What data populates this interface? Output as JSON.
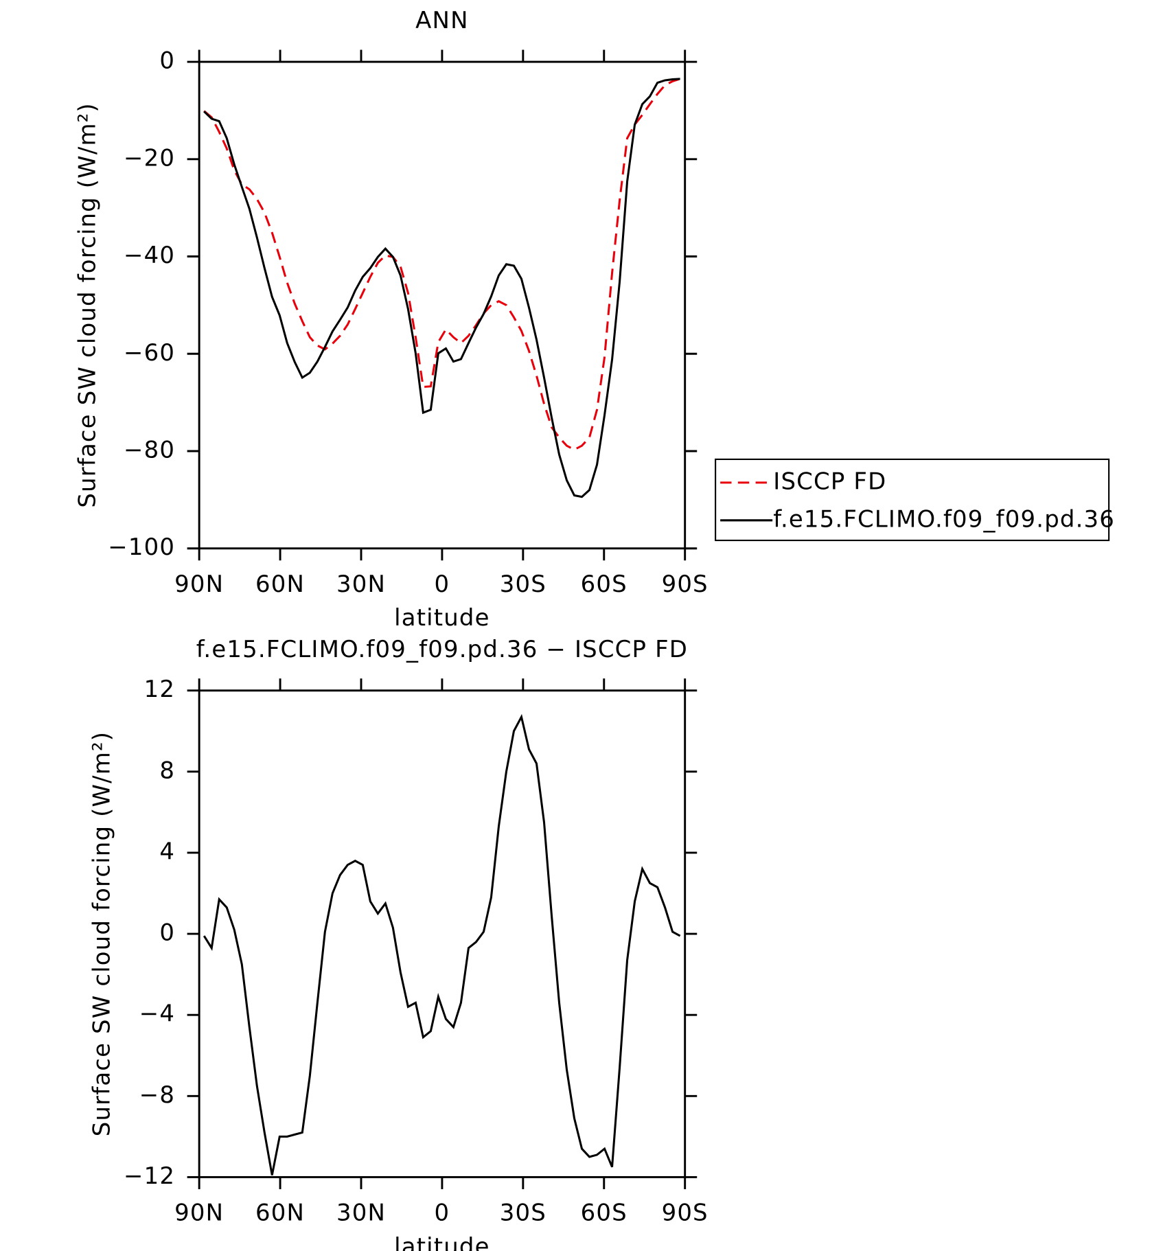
{
  "chart_data": [
    {
      "type": "line",
      "title": "ANN",
      "xlabel": "latitude",
      "ylabel": "Surface SW cloud forcing (W/m²)",
      "x": [
        88.2,
        85.4,
        82.6,
        79.8,
        77,
        74.2,
        71.4,
        68.6,
        65.8,
        63,
        60.2,
        57.4,
        54.6,
        51.8,
        49,
        46.2,
        43.4,
        40.6,
        37.8,
        35,
        32.2,
        29.4,
        26.6,
        23.8,
        21,
        18.2,
        15.4,
        12.6,
        9.8,
        7,
        4.2,
        1.4,
        -1.4,
        -4.2,
        -7,
        -9.8,
        -12.6,
        -15.4,
        -18.2,
        -21,
        -23.8,
        -26.6,
        -29.4,
        -32.2,
        -35,
        -37.8,
        -40.6,
        -43.4,
        -46.2,
        -49,
        -51.8,
        -54.6,
        -57.4,
        -60.2,
        -63,
        -65.8,
        -68.6,
        -71.4,
        -74.2,
        -77,
        -79.8,
        -82.6,
        -85.4,
        -88.2
      ],
      "series": [
        {
          "name": "ISCCP FD",
          "color": "#e8000b",
          "style": "dashed",
          "values": [
            -10.1,
            -11.4,
            -14.4,
            -17.8,
            -22.3,
            -25.2,
            -26.2,
            -28.2,
            -31.0,
            -35.1,
            -40.1,
            -45.4,
            -49.7,
            -53.3,
            -56.6,
            -58.3,
            -59.1,
            -57.9,
            -56.3,
            -54.0,
            -50.8,
            -47.5,
            -44.2,
            -41.3,
            -39.8,
            -40.1,
            -42.1,
            -47.5,
            -56.6,
            -66.8,
            -66.7,
            -57.6,
            -55.0,
            -56.6,
            -57.8,
            -56.3,
            -54.1,
            -51.7,
            -50.0,
            -49.2,
            -50.0,
            -52.5,
            -55.3,
            -59.4,
            -64.5,
            -70.3,
            -75.1,
            -77.2,
            -78.9,
            -79.7,
            -78.9,
            -77.2,
            -71.5,
            -60.7,
            -43.4,
            -28.5,
            -15.7,
            -12.9,
            -10.9,
            -8.7,
            -6.6,
            -4.8,
            -4.0,
            -3.5
          ]
        },
        {
          "name": "f.e15.FCLIMO.f09_f09.pd.36",
          "color": "#000000",
          "style": "solid",
          "values": [
            -10.2,
            -11.7,
            -12.2,
            -15.7,
            -21.1,
            -25.7,
            -30.2,
            -36.1,
            -42.4,
            -48.3,
            -52.1,
            -57.8,
            -61.7,
            -64.9,
            -63.9,
            -61.6,
            -58.6,
            -55.4,
            -53.0,
            -50.5,
            -47.0,
            -44.2,
            -42.4,
            -40.1,
            -38.4,
            -40.1,
            -43.9,
            -50.8,
            -59.9,
            -72.1,
            -71.5,
            -59.9,
            -58.9,
            -61.6,
            -61.1,
            -57.8,
            -54.6,
            -51.8,
            -48.2,
            -43.9,
            -41.6,
            -41.9,
            -44.6,
            -50.5,
            -57.1,
            -64.9,
            -73.1,
            -80.7,
            -86.0,
            -89.1,
            -89.4,
            -88.0,
            -82.8,
            -72.6,
            -61.2,
            -45.2,
            -24.6,
            -12.9,
            -8.7,
            -7.1,
            -4.3,
            -3.8,
            -3.6,
            -3.5
          ]
        }
      ],
      "xlim": [
        90,
        -90
      ],
      "xticks": [
        {
          "value": 90,
          "label": "90N"
        },
        {
          "value": 60,
          "label": "60N"
        },
        {
          "value": 30,
          "label": "30N"
        },
        0,
        {
          "value": -30,
          "label": "30S"
        },
        {
          "value": -60,
          "label": "60S"
        },
        {
          "value": -90,
          "label": "90S"
        }
      ],
      "ylim": [
        -100,
        0
      ],
      "yticks": [
        {
          "value": -100,
          "label": "−100"
        },
        {
          "value": -80,
          "label": "−80"
        },
        {
          "value": -60,
          "label": "−60"
        },
        {
          "value": -40,
          "label": "−40"
        },
        {
          "value": -20,
          "label": "−20"
        },
        0
      ],
      "legend": "right"
    },
    {
      "type": "line",
      "title": "f.e15.FCLIMO.f09_f09.pd.36 − ISCCP FD",
      "xlabel": "latitude",
      "ylabel": "Surface SW cloud forcing (W/m²)",
      "x": [
        88.2,
        85.4,
        82.6,
        79.8,
        77,
        74.2,
        71.4,
        68.6,
        65.8,
        63,
        60.2,
        57.4,
        54.6,
        51.8,
        49,
        46.2,
        43.4,
        40.6,
        37.8,
        35,
        32.2,
        29.4,
        26.6,
        23.8,
        21,
        18.2,
        15.4,
        12.6,
        9.8,
        7,
        4.2,
        1.4,
        -1.4,
        -4.2,
        -7,
        -9.8,
        -12.6,
        -15.4,
        -18.2,
        -21,
        -23.8,
        -26.6,
        -29.4,
        -32.2,
        -35,
        -37.8,
        -40.6,
        -43.4,
        -46.2,
        -49,
        -51.8,
        -54.6,
        -57.4,
        -60.2,
        -63,
        -65.8,
        -68.6,
        -71.4,
        -74.2,
        -77,
        -79.8,
        -82.6,
        -85.4,
        -88.2
      ],
      "values": [
        -0.1,
        -0.7,
        1.7,
        1.3,
        0.2,
        -1.5,
        -4.6,
        -7.5,
        -9.8,
        -11.9,
        -10.0,
        -10.0,
        -9.9,
        -9.8,
        -7.0,
        -3.4,
        0.1,
        2.0,
        2.9,
        3.4,
        3.6,
        3.4,
        1.6,
        1.0,
        1.5,
        0.3,
        -1.9,
        -3.6,
        -3.4,
        -5.1,
        -4.8,
        -3.1,
        -4.2,
        -4.6,
        -3.4,
        -0.7,
        -0.4,
        0.1,
        1.8,
        5.3,
        8.0,
        10.0,
        10.7,
        9.1,
        8.4,
        5.5,
        0.9,
        -3.4,
        -6.7,
        -9.1,
        -10.6,
        -11.0,
        -10.9,
        -10.6,
        -11.5,
        -6.6,
        -1.3,
        1.6,
        3.2,
        2.5,
        2.3,
        1.3,
        0.1,
        -0.1
      ],
      "color": "#000000",
      "xlim": [
        90,
        -90
      ],
      "xticks": [
        {
          "value": 90,
          "label": "90N"
        },
        {
          "value": 60,
          "label": "60N"
        },
        {
          "value": 30,
          "label": "30N"
        },
        0,
        {
          "value": -30,
          "label": "30S"
        },
        {
          "value": -60,
          "label": "60S"
        },
        {
          "value": -90,
          "label": "90S"
        }
      ],
      "ylim": [
        -12,
        12
      ],
      "yticks": [
        {
          "value": -12,
          "label": "−12"
        },
        {
          "value": -8,
          "label": "−8"
        },
        {
          "value": -4,
          "label": "−4"
        },
        0,
        4,
        8,
        12
      ]
    }
  ]
}
